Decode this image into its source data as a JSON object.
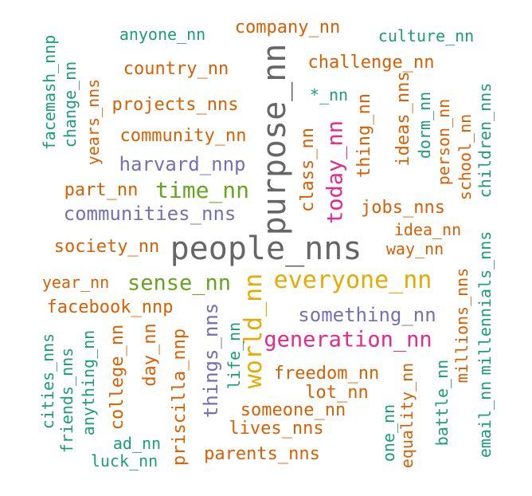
{
  "colors": {
    "orange": "#d95f02",
    "teal": "#1b9e77",
    "purple": "#7570b3",
    "gray": "#666666",
    "magenta": "#e7298a",
    "gold": "#e6ab02",
    "green": "#66a61e"
  },
  "words": [
    {
      "id": "people",
      "text": "people_nns",
      "color": "gray"
    },
    {
      "id": "purpose",
      "text": "purpose_nn",
      "color": "gray"
    },
    {
      "id": "everyone",
      "text": "everyone_nn",
      "color": "gold"
    },
    {
      "id": "world",
      "text": "world_nn",
      "color": "gold"
    },
    {
      "id": "time",
      "text": "time_nn",
      "color": "green"
    },
    {
      "id": "sense",
      "text": "sense_nn",
      "color": "green"
    },
    {
      "id": "generation",
      "text": "generation_nn",
      "color": "magenta"
    },
    {
      "id": "today",
      "text": "today_nn",
      "color": "magenta"
    },
    {
      "id": "communities",
      "text": "communities_nns",
      "color": "purple"
    },
    {
      "id": "harvard",
      "text": "harvard_nnp",
      "color": "purple"
    },
    {
      "id": "something",
      "text": "something_nn",
      "color": "purple"
    },
    {
      "id": "things",
      "text": "things_nns",
      "color": "purple"
    },
    {
      "id": "company",
      "text": "company_nn",
      "color": "orange"
    },
    {
      "id": "challenge",
      "text": "challenge_nn",
      "color": "orange"
    },
    {
      "id": "country",
      "text": "country_nn",
      "color": "orange"
    },
    {
      "id": "projects",
      "text": "projects_nns",
      "color": "orange"
    },
    {
      "id": "community",
      "text": "community_nn",
      "color": "orange"
    },
    {
      "id": "part",
      "text": "part_nn",
      "color": "orange"
    },
    {
      "id": "society",
      "text": "society_nn",
      "color": "orange"
    },
    {
      "id": "year",
      "text": "year_nn",
      "color": "orange"
    },
    {
      "id": "facebook",
      "text": "facebook_nnp",
      "color": "orange"
    },
    {
      "id": "jobs",
      "text": "jobs_nns",
      "color": "orange"
    },
    {
      "id": "idea",
      "text": "idea_nn",
      "color": "orange"
    },
    {
      "id": "way",
      "text": "way_nn",
      "color": "orange"
    },
    {
      "id": "freedom",
      "text": "freedom_nn",
      "color": "orange"
    },
    {
      "id": "lot",
      "text": "lot_nn",
      "color": "orange"
    },
    {
      "id": "someone",
      "text": "someone_nn",
      "color": "orange"
    },
    {
      "id": "lives",
      "text": "lives_nns",
      "color": "orange"
    },
    {
      "id": "parents",
      "text": "parents_nns",
      "color": "orange"
    },
    {
      "id": "years",
      "text": "years_nns",
      "color": "orange"
    },
    {
      "id": "class",
      "text": "class_nn",
      "color": "orange"
    },
    {
      "id": "thing",
      "text": "thing_nn",
      "color": "orange"
    },
    {
      "id": "ideas",
      "text": "ideas_nns",
      "color": "orange"
    },
    {
      "id": "person",
      "text": "person_nn",
      "color": "orange"
    },
    {
      "id": "school",
      "text": "school_nn",
      "color": "orange"
    },
    {
      "id": "college",
      "text": "college_nn",
      "color": "orange"
    },
    {
      "id": "day",
      "text": "day_nn",
      "color": "orange"
    },
    {
      "id": "priscilla",
      "text": "priscilla_nnp",
      "color": "orange"
    },
    {
      "id": "equality",
      "text": "equality_nn",
      "color": "orange"
    },
    {
      "id": "millions",
      "text": "millions_nns",
      "color": "orange"
    },
    {
      "id": "anyone",
      "text": "anyone_nn",
      "color": "teal"
    },
    {
      "id": "culture",
      "text": "culture_nn",
      "color": "teal"
    },
    {
      "id": "star",
      "text": "*_nn",
      "color": "teal"
    },
    {
      "id": "ad",
      "text": "ad_nn",
      "color": "teal"
    },
    {
      "id": "luck",
      "text": "luck_nn",
      "color": "teal"
    },
    {
      "id": "facemash",
      "text": "facemash_nnp",
      "color": "teal"
    },
    {
      "id": "change",
      "text": "change_nn",
      "color": "teal"
    },
    {
      "id": "dorm",
      "text": "dorm_nn",
      "color": "teal"
    },
    {
      "id": "children",
      "text": "children_nns",
      "color": "teal"
    },
    {
      "id": "cities",
      "text": "cities_nns",
      "color": "teal"
    },
    {
      "id": "friends",
      "text": "friends_nns",
      "color": "teal"
    },
    {
      "id": "anything",
      "text": "anything_nn",
      "color": "teal"
    },
    {
      "id": "life",
      "text": "life_nn",
      "color": "teal"
    },
    {
      "id": "one",
      "text": "one_nn",
      "color": "teal"
    },
    {
      "id": "battle",
      "text": "battle_nn",
      "color": "teal"
    },
    {
      "id": "email",
      "text": "email_nn",
      "color": "teal"
    },
    {
      "id": "millennials",
      "text": "millennials_nns",
      "color": "teal"
    }
  ]
}
